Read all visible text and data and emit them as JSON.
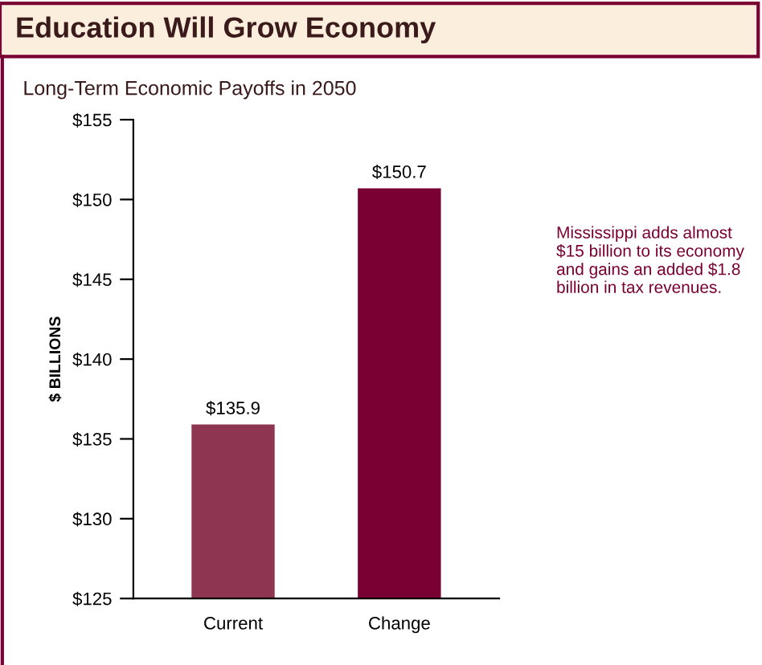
{
  "chart_data": {
    "type": "bar",
    "title": "Education Will Grow Economy",
    "subtitle": "Long-Term Economic Payoffs in 2050",
    "ylabel": "$ BILLIONS",
    "categories": [
      "Current",
      "Change"
    ],
    "values": [
      135.9,
      150.7
    ],
    "colors": [
      "#8e3552",
      "#7a0033"
    ],
    "value_labels": [
      "$135.9",
      "$150.7"
    ],
    "ylim": [
      125,
      155
    ],
    "yticks": [
      {
        "value": 125,
        "label": "$125"
      },
      {
        "value": 130,
        "label": "$130"
      },
      {
        "value": 135,
        "label": "$135"
      },
      {
        "value": 140,
        "label": "$140"
      },
      {
        "value": 145,
        "label": "$145"
      },
      {
        "value": 150,
        "label": "$150"
      },
      {
        "value": 155,
        "label": "$155"
      }
    ],
    "annotations": [
      "Mississippi adds almost $15 billion to its economy and gains an added $1.8 billion in tax revenues."
    ],
    "grid": false,
    "legend": false
  }
}
